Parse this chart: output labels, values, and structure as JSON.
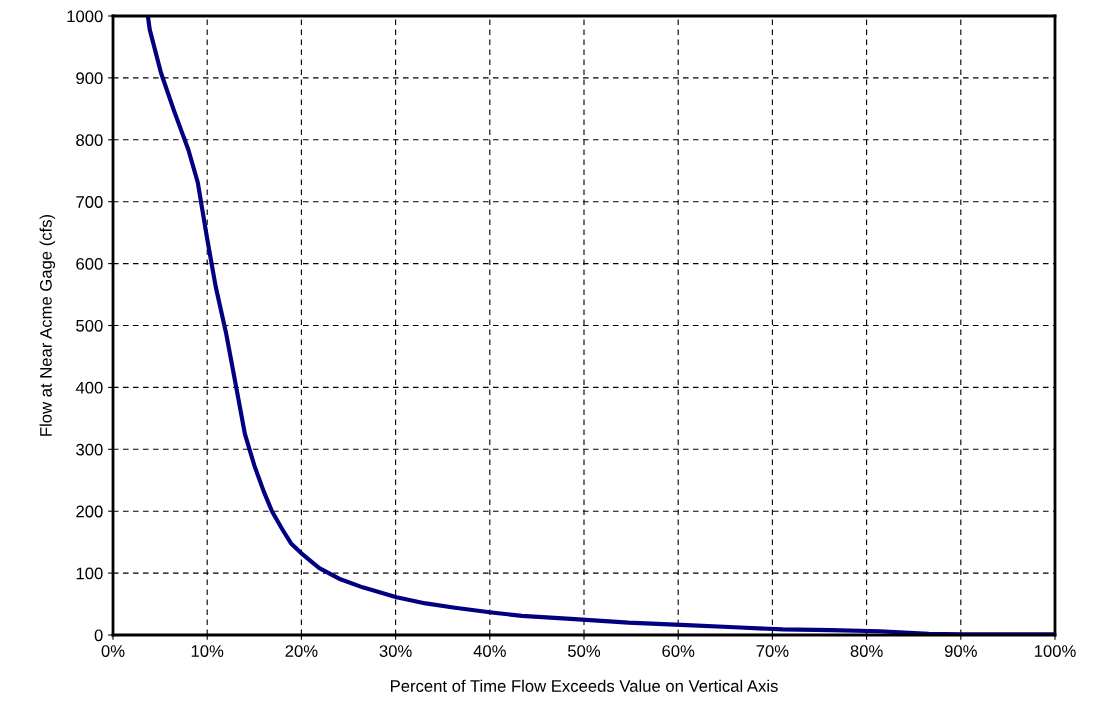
{
  "chart_data": {
    "type": "line",
    "xlabel": "Percent of Time Flow Exceeds Value on Vertical Axis",
    "ylabel": "Flow at Near Acme Gage (cfs)",
    "series": [
      {
        "color": "#000080",
        "x": [
          3.7,
          3.9,
          5.1,
          6.5,
          8.0,
          9.0,
          10.0,
          10.9,
          12.0,
          13.0,
          14.0,
          15.0,
          16.0,
          16.9,
          18.0,
          18.9,
          20.0,
          21.9,
          24.0,
          26.5,
          30.1,
          33.2,
          36.3,
          40.4,
          43.4,
          48.6,
          54.7,
          60.9,
          66.0,
          71.1,
          76.2,
          81.4,
          86.6,
          90.2,
          95.0,
          100.0
        ],
        "values": [
          1000,
          978,
          908,
          846,
          784,
          731,
          640,
          563,
          488,
          407,
          325,
          274,
          232,
          199,
          170,
          148,
          132,
          108,
          91,
          77,
          61,
          51,
          44,
          36,
          31,
          26,
          20,
          16,
          12.5,
          9,
          8,
          6,
          2,
          1,
          1,
          1
        ]
      }
    ],
    "xlim": [
      0,
      100
    ],
    "ylim": [
      0,
      1000
    ],
    "xticks": [
      {
        "value": 0,
        "label": "0%"
      },
      {
        "value": 10,
        "label": "10%"
      },
      {
        "value": 20,
        "label": "20%"
      },
      {
        "value": 30,
        "label": "30%"
      },
      {
        "value": 40,
        "label": "40%"
      },
      {
        "value": 50,
        "label": "50%"
      },
      {
        "value": 60,
        "label": "60%"
      },
      {
        "value": 70,
        "label": "70%"
      },
      {
        "value": 80,
        "label": "80%"
      },
      {
        "value": 90,
        "label": "90%"
      },
      {
        "value": 100,
        "label": "100%"
      }
    ],
    "yticks": [
      0,
      100,
      200,
      300,
      400,
      500,
      600,
      700,
      800,
      900,
      1000
    ],
    "grid": true,
    "legend": false,
    "marker": "none",
    "line_style": "solid"
  }
}
